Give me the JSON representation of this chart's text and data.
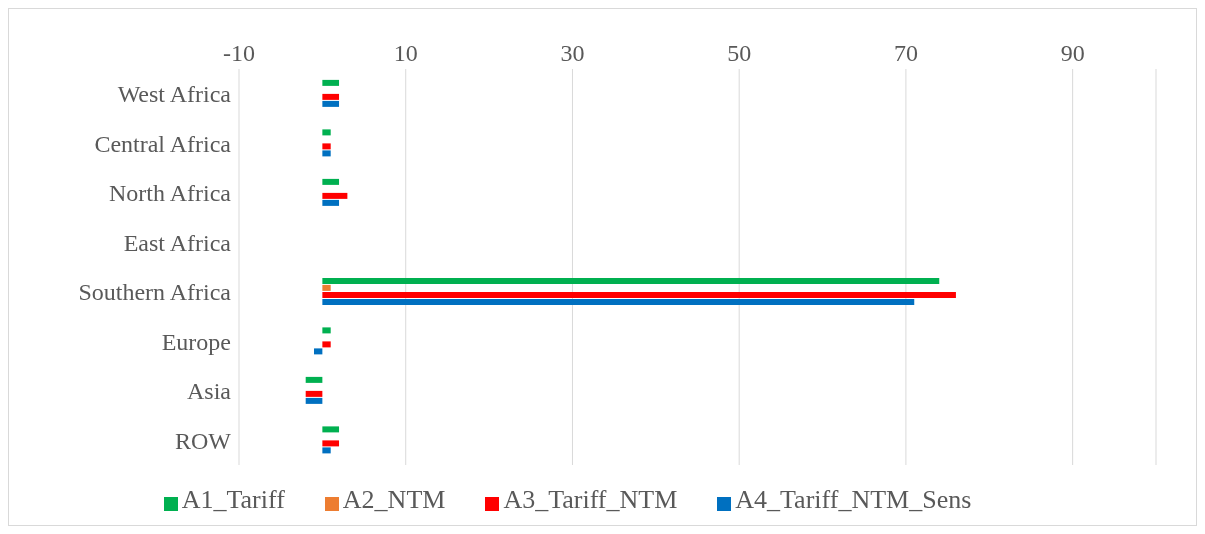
{
  "chart_data": {
    "type": "bar",
    "orientation": "horizontal",
    "categories": [
      "West Africa",
      "Central Africa",
      "North Africa",
      "East Africa",
      "Southern Africa",
      "Europe",
      "Asia",
      "ROW"
    ],
    "series": [
      {
        "name": "A1_Tariff",
        "color": "#00b050",
        "values": [
          2,
          1,
          2,
          0,
          74,
          1,
          -2,
          2
        ]
      },
      {
        "name": "A2_NTM",
        "color": "#ed7d31",
        "values": [
          0,
          0,
          0,
          0,
          1,
          0,
          0,
          0
        ]
      },
      {
        "name": "A3_Tariff_NTM",
        "color": "#ff0000",
        "values": [
          2,
          1,
          3,
          0,
          76,
          1,
          -2,
          2
        ]
      },
      {
        "name": "A4_Tariff_NTM_Sens",
        "color": "#0070c0",
        "values": [
          2,
          1,
          2,
          0,
          71,
          -1,
          -2,
          1
        ]
      }
    ],
    "xlim": [
      -10,
      100
    ],
    "xticks": [
      -10,
      10,
      30,
      50,
      70,
      90
    ],
    "grid": "x",
    "legend": "bottom"
  }
}
